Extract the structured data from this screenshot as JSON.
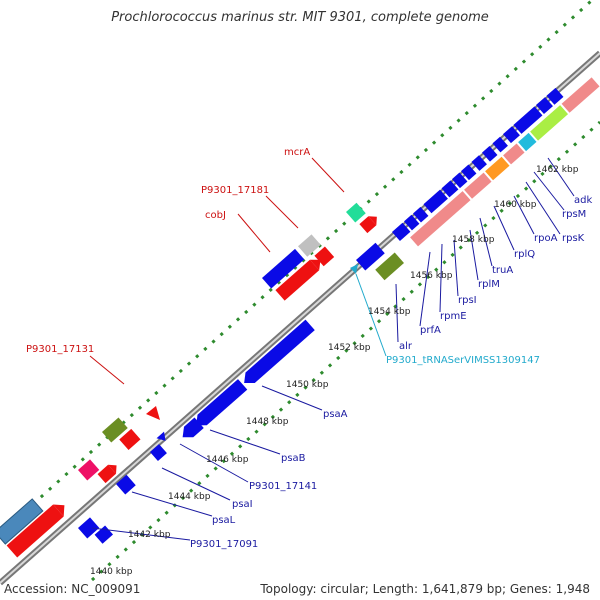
{
  "title": "Prochlorococcus marinus str. MIT 9301, complete genome",
  "accession_text": "Accession: NC_009091",
  "topology_text": "Topology: circular; Length: 1,641,879 bp; Genes: 1,948",
  "colors": {
    "backbone": "#808080",
    "tick_dot": "#2e8b2e",
    "gene_blue": "#0a0ae6",
    "gene_red": "#ee1111",
    "label_blue": "#1a1aa0",
    "label_red": "#cc1111",
    "label_cyan": "#22aacc"
  },
  "kbp_ticks": [
    "1440 kbp",
    "1442 kbp",
    "1444 kbp",
    "1446 kbp",
    "1448 kbp",
    "1450 kbp",
    "1452 kbp",
    "1454 kbp",
    "1456 kbp",
    "1458 kbp",
    "1460 kbp",
    "1462 kbp"
  ],
  "gene_labels": [
    {
      "text": "P9301_17091",
      "color": "blue"
    },
    {
      "text": "psaL",
      "color": "blue"
    },
    {
      "text": "psaI",
      "color": "blue"
    },
    {
      "text": "P9301_17141",
      "color": "blue"
    },
    {
      "text": "psaB",
      "color": "blue"
    },
    {
      "text": "psaA",
      "color": "blue"
    },
    {
      "text": "P9301_tRNASerVIMSS1309147",
      "color": "cyan"
    },
    {
      "text": "alr",
      "color": "blue"
    },
    {
      "text": "prfA",
      "color": "blue"
    },
    {
      "text": "rpmE",
      "color": "blue"
    },
    {
      "text": "rpsI",
      "color": "blue"
    },
    {
      "text": "rplM",
      "color": "blue"
    },
    {
      "text": "truA",
      "color": "blue"
    },
    {
      "text": "rplQ",
      "color": "blue"
    },
    {
      "text": "rpoA",
      "color": "blue"
    },
    {
      "text": "rpsK",
      "color": "blue"
    },
    {
      "text": "rpsM",
      "color": "blue"
    },
    {
      "text": "adk",
      "color": "blue"
    },
    {
      "text": "P9301_17131",
      "color": "red"
    },
    {
      "text": "cobJ",
      "color": "red"
    },
    {
      "text": "P9301_17181",
      "color": "red"
    },
    {
      "text": "mcrA",
      "color": "red"
    }
  ]
}
